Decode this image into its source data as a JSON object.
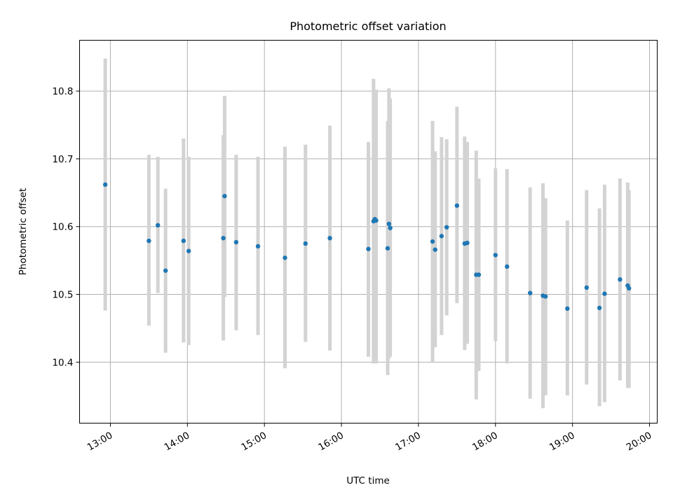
{
  "chart_data": {
    "type": "scatter",
    "title": "Photometric offset variation",
    "xlabel": "UTC time",
    "ylabel": "Photometric offset",
    "x_ticks": [
      "13:00",
      "14:00",
      "15:00",
      "16:00",
      "17:00",
      "18:00",
      "19:00",
      "20:00"
    ],
    "y_ticks": [
      "10.4",
      "10.5",
      "10.6",
      "10.7",
      "10.8"
    ],
    "xlim": [
      "12:36",
      "20:06"
    ],
    "ylim": [
      10.31,
      10.875
    ],
    "grid": true,
    "colors": {
      "marker": "#1f77b4",
      "errorbar": "#d3d3d3"
    },
    "series": [
      {
        "x": [
          "12:56",
          "13:30",
          "13:37",
          "13:43",
          "13:57",
          "14:01",
          "14:28",
          "14:29",
          "14:38",
          "14:55",
          "15:16",
          "15:32",
          "15:51",
          "16:21",
          "16:25",
          "16:26",
          "16:27",
          "16:36",
          "16:37",
          "16:38",
          "17:11",
          "17:13",
          "17:18",
          "17:22",
          "17:30",
          "17:36",
          "17:38",
          "17:45",
          "17:47",
          "18:00",
          "18:09",
          "18:27",
          "18:37",
          "18:39",
          "18:56",
          "19:11",
          "19:21",
          "19:25",
          "19:37",
          "19:43",
          "19:44"
        ],
        "y": [
          10.662,
          10.579,
          10.602,
          10.535,
          10.579,
          10.564,
          10.583,
          10.645,
          10.577,
          10.571,
          10.554,
          10.575,
          10.583,
          10.567,
          10.608,
          10.611,
          10.609,
          10.568,
          10.604,
          10.598,
          10.578,
          10.566,
          10.586,
          10.599,
          10.631,
          10.575,
          10.576,
          10.529,
          10.529,
          10.558,
          10.541,
          10.502,
          10.498,
          10.497,
          10.479,
          10.51,
          10.48,
          10.501,
          10.522,
          10.513,
          10.509
        ],
        "yerr_low": [
          10.476,
          10.454,
          10.502,
          10.414,
          10.429,
          10.425,
          10.432,
          10.496,
          10.447,
          10.44,
          10.391,
          10.43,
          10.417,
          10.408,
          10.398,
          10.425,
          10.398,
          10.381,
          10.405,
          10.408,
          10.4,
          10.422,
          10.44,
          10.469,
          10.487,
          10.418,
          10.427,
          10.345,
          10.387,
          10.431,
          10.398,
          10.346,
          10.332,
          10.351,
          10.351,
          10.367,
          10.335,
          10.341,
          10.373,
          10.362,
          10.362
        ],
        "yerr_high": [
          10.848,
          10.706,
          10.703,
          10.656,
          10.73,
          10.703,
          10.735,
          10.793,
          10.706,
          10.703,
          10.718,
          10.721,
          10.749,
          10.725,
          10.818,
          10.796,
          10.802,
          10.756,
          10.804,
          10.789,
          10.756,
          10.711,
          10.732,
          10.729,
          10.777,
          10.733,
          10.725,
          10.712,
          10.671,
          10.686,
          10.685,
          10.658,
          10.664,
          10.642,
          10.609,
          10.654,
          10.627,
          10.662,
          10.671,
          10.665,
          10.654
        ]
      }
    ]
  }
}
